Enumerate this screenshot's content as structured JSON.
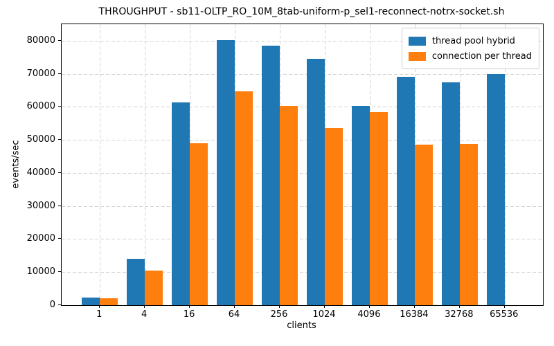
{
  "figure": {
    "kind": "matplotlib-bar-chart-window"
  },
  "chart_data": {
    "type": "bar",
    "title": "THROUGHPUT - sb11-OLTP_RO_10M_8tab-uniform-p_sel1-reconnect-notrx-socket.sh",
    "xlabel": "clients",
    "ylabel": "events/sec",
    "categories": [
      "1",
      "4",
      "16",
      "64",
      "256",
      "1024",
      "4096",
      "16384",
      "32768",
      "65536"
    ],
    "series": [
      {
        "name": "thread pool hybrid",
        "color": "#1f77b4",
        "values": [
          2200,
          14000,
          61400,
          80200,
          78500,
          74500,
          60400,
          69000,
          67400,
          69900
        ]
      },
      {
        "name": "connection per thread",
        "color": "#ff7f0e",
        "values": [
          2000,
          10500,
          49000,
          64700,
          60300,
          53600,
          58400,
          48600,
          48800,
          0
        ]
      }
    ],
    "ylim": [
      0,
      85000
    ],
    "yticks": [
      0,
      10000,
      20000,
      30000,
      40000,
      50000,
      60000,
      70000,
      80000
    ],
    "grid": "dashed-both-axes",
    "grid_color": "#d2d2d2",
    "legend_position": "upper right",
    "background": "#ffffff"
  }
}
